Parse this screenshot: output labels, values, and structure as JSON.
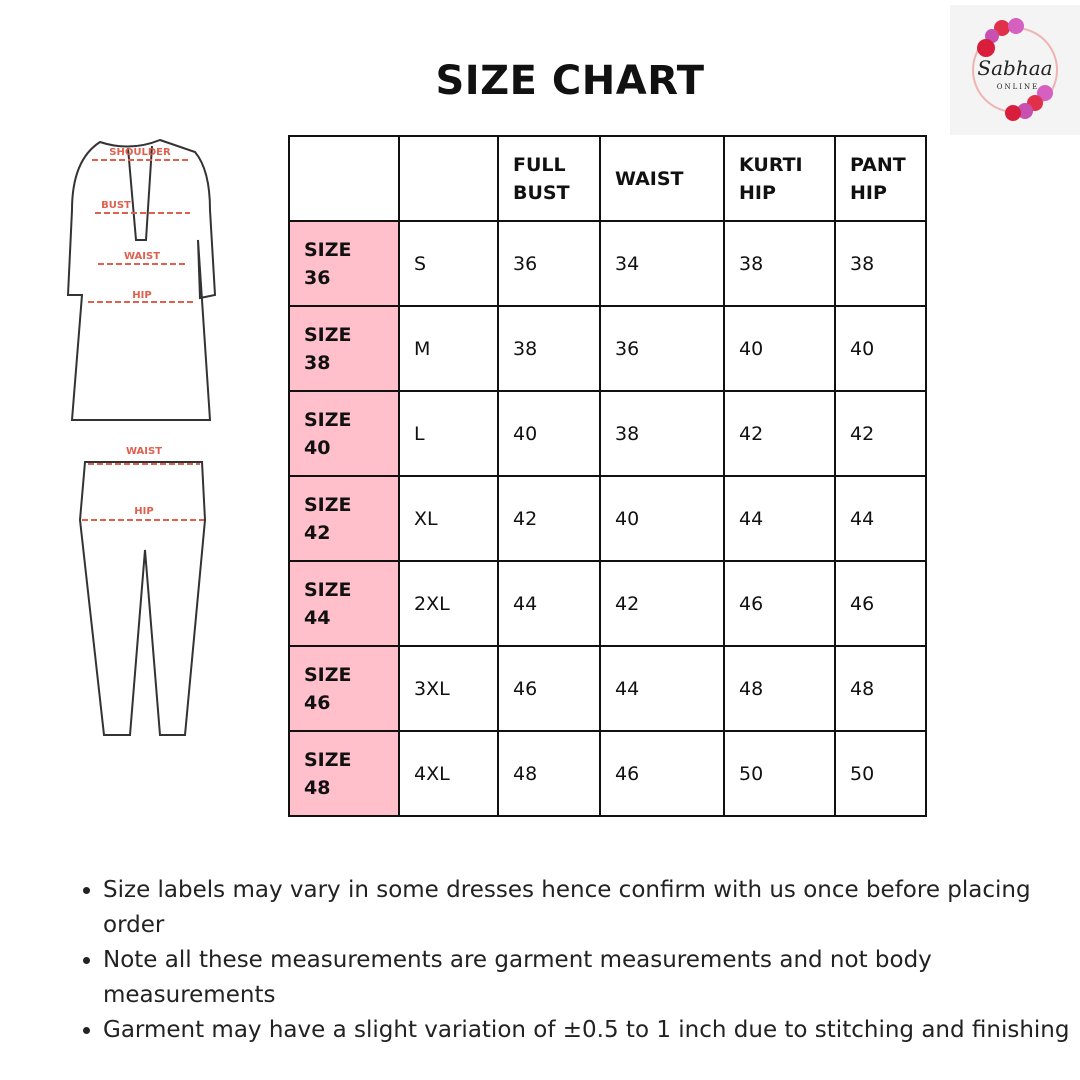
{
  "title": "SIZE CHART",
  "logo": {
    "text": "Sabhaa",
    "subtext": "ONLINE"
  },
  "illustration": {
    "kurta_labels": [
      "SHOULDER",
      "BUST",
      "WAIST",
      "HIP"
    ],
    "pant_labels": [
      "WAIST",
      "HIP"
    ],
    "accent": "#e0604f"
  },
  "table": {
    "headers": [
      "",
      "",
      "FULL BUST",
      "WAIST",
      "KURTI HIP",
      "PANT HIP"
    ],
    "header_lines": [
      [
        "",
        ""
      ],
      [
        "",
        ""
      ],
      [
        "FULL",
        "BUST"
      ],
      [
        "WAIST",
        ""
      ],
      [
        "KURTI",
        "HIP"
      ],
      [
        "PANT",
        "HIP"
      ]
    ],
    "highlight_color": "#ffc0cb",
    "rows": [
      {
        "size": "SIZE",
        "num": "36",
        "label": "S",
        "full_bust": "36",
        "waist": "34",
        "kurti_hip": "38",
        "pant_hip": "38"
      },
      {
        "size": "SIZE",
        "num": "38",
        "label": "M",
        "full_bust": "38",
        "waist": "36",
        "kurti_hip": "40",
        "pant_hip": "40"
      },
      {
        "size": "SIZE",
        "num": "40",
        "label": "L",
        "full_bust": "40",
        "waist": "38",
        "kurti_hip": "42",
        "pant_hip": "42"
      },
      {
        "size": "SIZE",
        "num": "42",
        "label": "XL",
        "full_bust": "42",
        "waist": "40",
        "kurti_hip": "44",
        "pant_hip": "44"
      },
      {
        "size": "SIZE",
        "num": "44",
        "label": "2XL",
        "full_bust": "44",
        "waist": "42",
        "kurti_hip": "46",
        "pant_hip": "46"
      },
      {
        "size": "SIZE",
        "num": "46",
        "label": "3XL",
        "full_bust": "46",
        "waist": "44",
        "kurti_hip": "48",
        "pant_hip": "48"
      },
      {
        "size": "SIZE",
        "num": "48",
        "label": "4XL",
        "full_bust": "48",
        "waist": "46",
        "kurti_hip": "50",
        "pant_hip": "50"
      }
    ]
  },
  "notes": [
    "Size labels may vary in some dresses hence confirm with us once before placing order",
    "Note all these measurements are garment measurements and not body measurements",
    "Garment may have a slight variation of ±0.5 to 1 inch due to stitching and finishing"
  ]
}
